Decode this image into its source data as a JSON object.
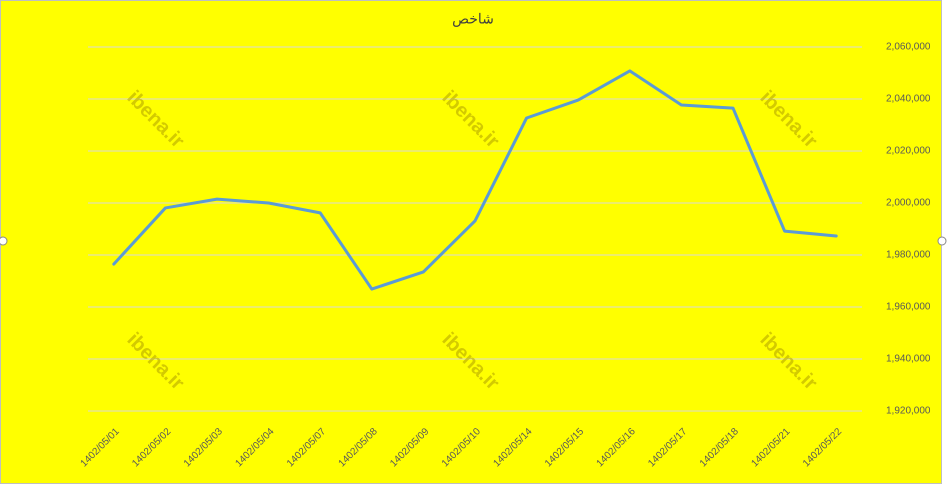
{
  "chart_data": {
    "type": "line",
    "title": "شاخص",
    "watermark": "ibena.ir",
    "categories": [
      "1402/05/01",
      "1402/05/02",
      "1402/05/03",
      "1402/05/04",
      "1402/05/07",
      "1402/05/08",
      "1402/05/09",
      "1402/05/10",
      "1402/05/14",
      "1402/05/15",
      "1402/05/16",
      "1402/05/17",
      "1402/05/18",
      "1402/05/21",
      "1402/05/22"
    ],
    "series": [
      {
        "name": "شاخص",
        "color": "#5b9bd5",
        "values": [
          1976500,
          1998100,
          2001500,
          2000000,
          1996200,
          1966900,
          1973500,
          1993100,
          2032700,
          2039600,
          2050800,
          2037700,
          2036500,
          1989200,
          1987300
        ]
      }
    ],
    "ylim": [
      1920000,
      2060000
    ],
    "yticks": [
      {
        "value": 1920000,
        "label": "1,920,000"
      },
      {
        "value": 1940000,
        "label": "1,940,000"
      },
      {
        "value": 1960000,
        "label": "1,960,000"
      },
      {
        "value": 1980000,
        "label": "1,980,000"
      },
      {
        "value": 2000000,
        "label": "2,000,000"
      },
      {
        "value": 2020000,
        "label": "2,020,000"
      },
      {
        "value": 2040000,
        "label": "2,040,000"
      },
      {
        "value": 2060000,
        "label": "2,060,000"
      }
    ],
    "grid": true,
    "y_axis_side": "right"
  }
}
